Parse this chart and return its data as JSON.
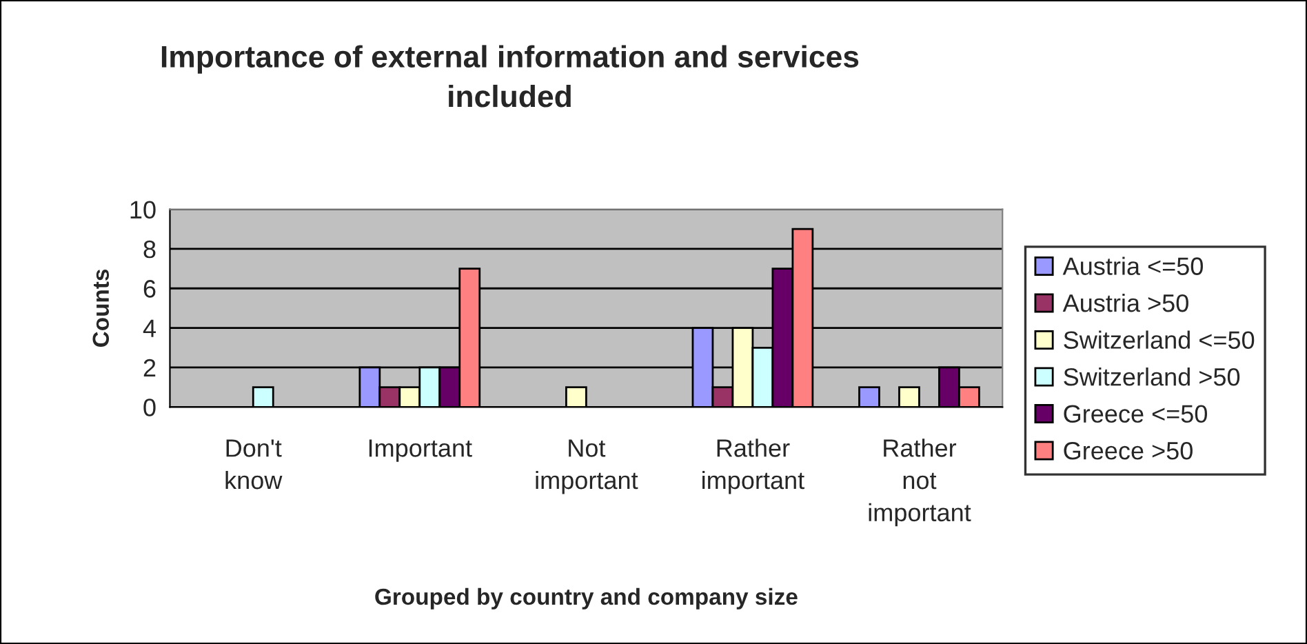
{
  "chart_data": {
    "type": "bar",
    "title": "Importance of external information and services\nincluded",
    "xlabel": "Grouped by country and company size",
    "ylabel": "Counts",
    "categories": [
      "Don't know",
      "Important",
      "Not important",
      "Rather important",
      "Rather not important"
    ],
    "series": [
      {
        "name": "Austria <=50",
        "color": "#9999ff",
        "values": [
          0,
          2,
          0,
          4,
          1
        ]
      },
      {
        "name": "Austria >50",
        "color": "#993366",
        "values": [
          0,
          1,
          0,
          1,
          0
        ]
      },
      {
        "name": "Switzerland <=50",
        "color": "#ffffcc",
        "values": [
          0,
          1,
          1,
          4,
          1
        ]
      },
      {
        "name": "Switzerland >50",
        "color": "#ccffff",
        "values": [
          1,
          2,
          0,
          3,
          0
        ]
      },
      {
        "name": "Greece <=50",
        "color": "#660066",
        "values": [
          0,
          2,
          0,
          7,
          2
        ]
      },
      {
        "name": "Greece >50",
        "color": "#ff8080",
        "values": [
          0,
          7,
          0,
          9,
          1
        ]
      }
    ],
    "ylim": [
      0,
      10
    ],
    "yticks": [
      0,
      2,
      4,
      6,
      8,
      10
    ],
    "grid": "y",
    "legend": "right"
  }
}
